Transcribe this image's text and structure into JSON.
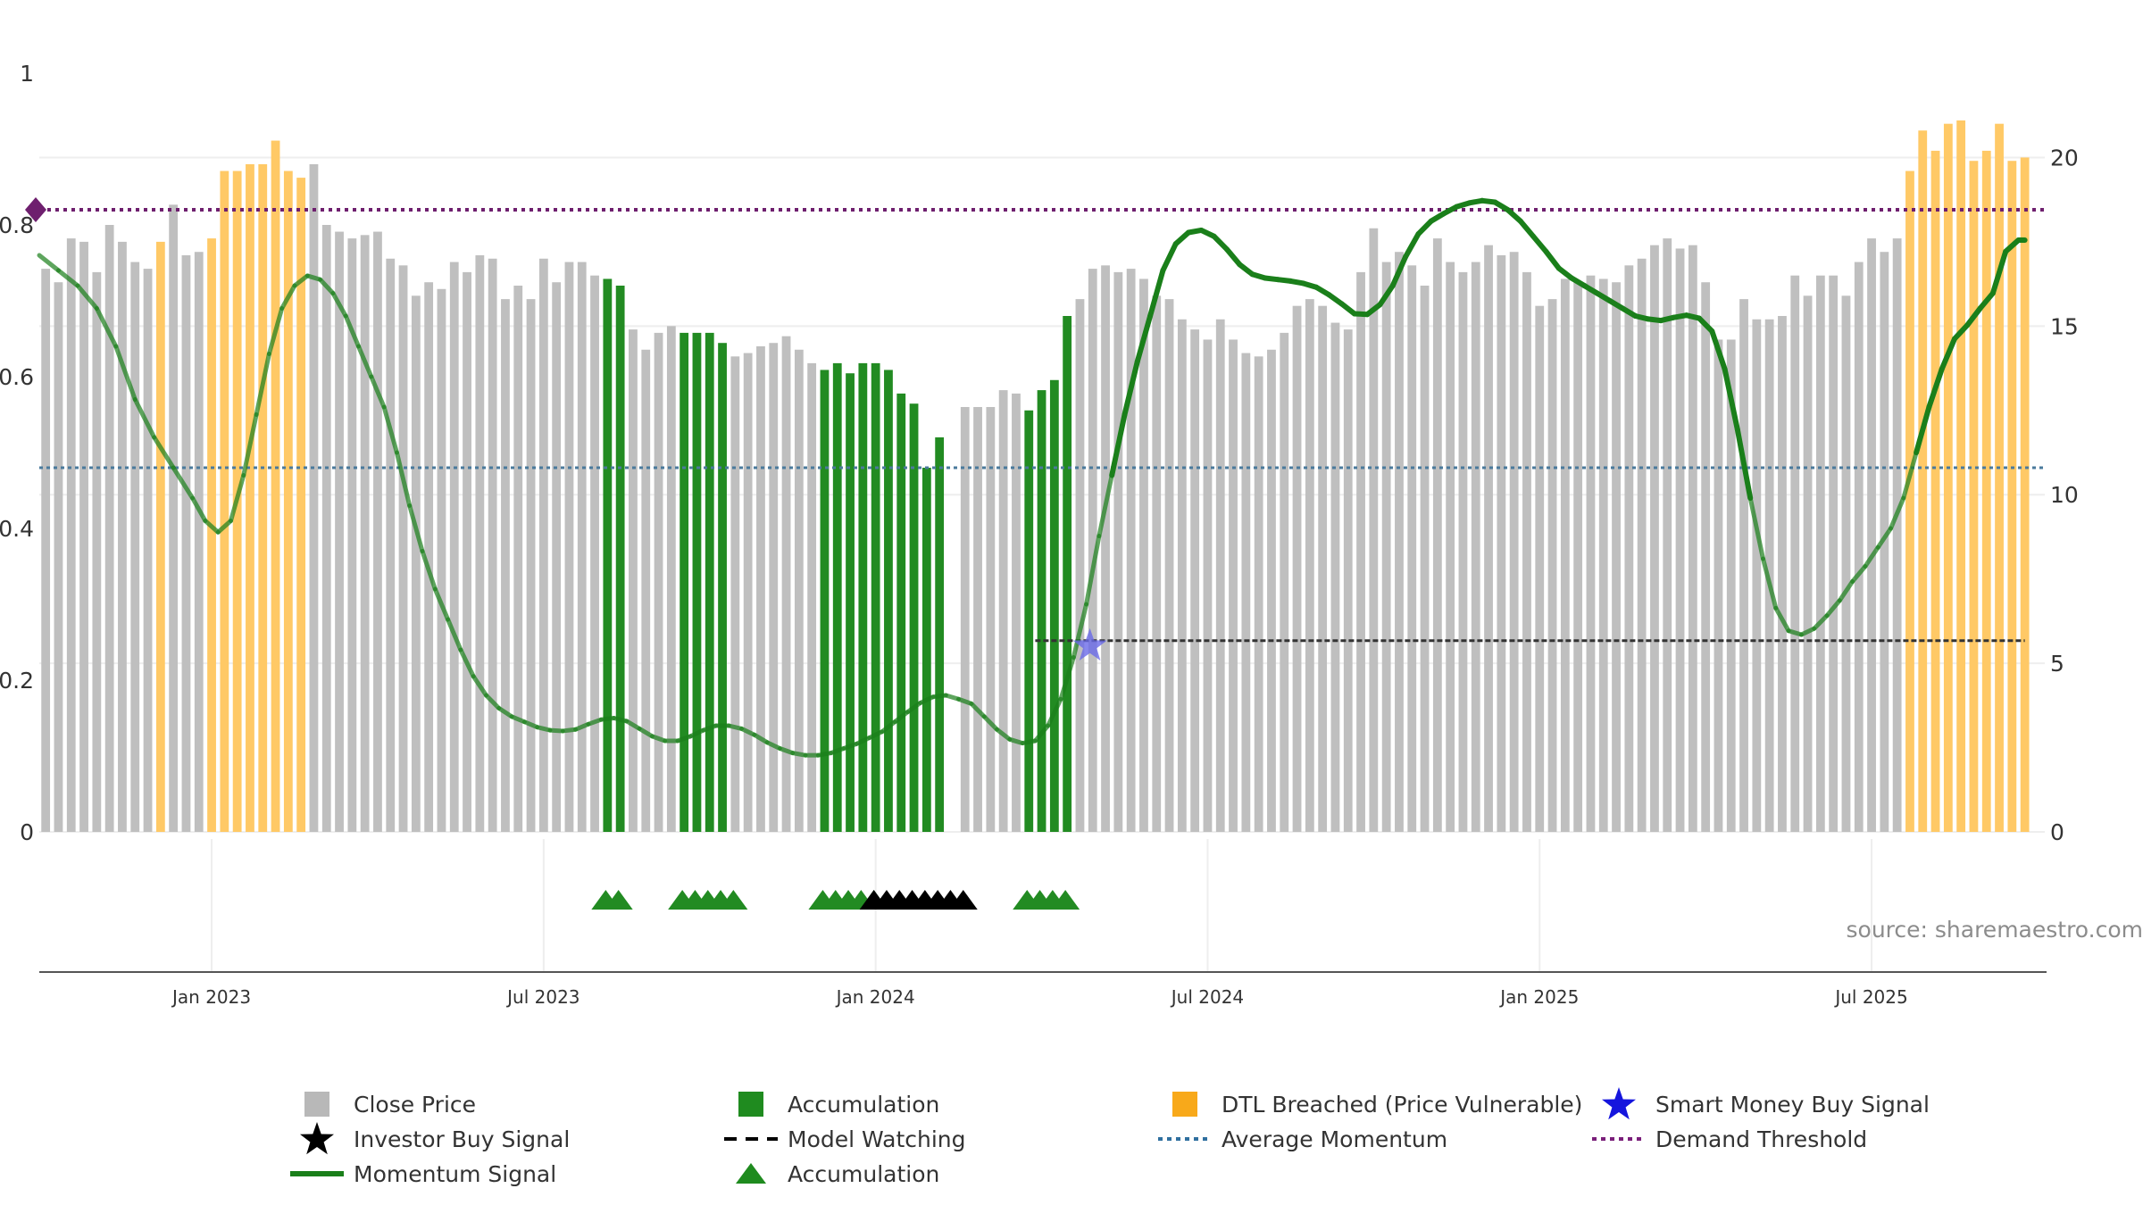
{
  "chart_data": {
    "type": "bar",
    "source": "source: sharemaestro.com",
    "left_axis": {
      "ticks": [
        "0",
        "0.2",
        "0.4",
        "0.6",
        "0.8",
        "1"
      ],
      "ylim": [
        0,
        1
      ]
    },
    "right_axis": {
      "ticks": [
        "0",
        "5",
        "10",
        "15",
        "20"
      ],
      "ylim": [
        0,
        22.5
      ]
    },
    "x_ticks": [
      "Jan 2023",
      "Jul 2023",
      "Jan 2024",
      "Jul 2024",
      "Jan 2025",
      "Jul 2025"
    ],
    "x_tick_weeks": [
      14,
      40,
      66,
      92,
      118,
      144
    ],
    "weeks": 156,
    "close_price": [
      16.7,
      16.3,
      17.6,
      17.5,
      16.6,
      18.0,
      17.5,
      16.9,
      16.7,
      17.5,
      18.6,
      17.1,
      17.2,
      17.6,
      19.6,
      19.6,
      19.8,
      19.8,
      20.5,
      19.6,
      19.4,
      19.8,
      18.0,
      17.8,
      17.6,
      17.7,
      17.8,
      17.0,
      16.8,
      15.9,
      16.3,
      16.1,
      16.9,
      16.6,
      17.1,
      17.0,
      15.8,
      16.2,
      15.8,
      17.0,
      16.3,
      16.9,
      16.9,
      16.5,
      16.4,
      16.2,
      14.9,
      14.3,
      14.8,
      15.0,
      14.8,
      14.8,
      14.8,
      14.5,
      14.1,
      14.2,
      14.4,
      14.5,
      14.7,
      14.3,
      13.9,
      13.7,
      13.9,
      13.6,
      13.9,
      13.9,
      13.7,
      13.0,
      12.7,
      10.8,
      11.7,
      0.0,
      12.6,
      12.6,
      12.6,
      13.1,
      13.0,
      12.5,
      13.1,
      13.4,
      15.3,
      15.8,
      16.7,
      16.8,
      16.6,
      16.7,
      16.4,
      15.9,
      15.8,
      15.2,
      14.9,
      14.6,
      15.2,
      14.6,
      14.2,
      14.1,
      14.3,
      14.8,
      15.6,
      15.8,
      15.6,
      15.1,
      14.9,
      16.6,
      17.9,
      16.9,
      17.2,
      16.8,
      16.2,
      17.6,
      16.9,
      16.6,
      16.9,
      17.4,
      17.1,
      17.2,
      16.6,
      15.6,
      15.8,
      16.4,
      16.3,
      16.5,
      16.4,
      16.3,
      16.8,
      17.0,
      17.4,
      17.6,
      17.3,
      17.4,
      16.3,
      14.6,
      14.6,
      15.8,
      15.2,
      15.2,
      15.3,
      16.5,
      15.9,
      16.5,
      16.5,
      15.9,
      16.9,
      17.6,
      17.2,
      17.6,
      19.6,
      20.8,
      20.2,
      21.0,
      21.1,
      19.9,
      20.2,
      21.0,
      19.9,
      20.0
    ],
    "accumulation_weeks": [
      45,
      46,
      51,
      52,
      53,
      54,
      62,
      63,
      64,
      65,
      66,
      67,
      68,
      69,
      70,
      71,
      72,
      78,
      79,
      80,
      81
    ],
    "dtl_breached_weeks": [
      10,
      14,
      15,
      16,
      17,
      18,
      19,
      20,
      21,
      147,
      148,
      149,
      150,
      151,
      152,
      153,
      154,
      155,
      156
    ],
    "momentum_signal": [
      [
        0.5,
        0.76
      ],
      [
        2.0,
        0.74
      ],
      [
        3.5,
        0.72
      ],
      [
        5.0,
        0.69
      ],
      [
        6.5,
        0.64
      ],
      [
        8.0,
        0.57
      ],
      [
        9.5,
        0.52
      ],
      [
        11.0,
        0.48
      ],
      [
        12.5,
        0.44
      ],
      [
        13.5,
        0.41
      ],
      [
        14.5,
        0.395
      ],
      [
        15.5,
        0.41
      ],
      [
        16.5,
        0.47
      ],
      [
        17.5,
        0.55
      ],
      [
        18.5,
        0.63
      ],
      [
        19.5,
        0.69
      ],
      [
        20.5,
        0.72
      ],
      [
        21.5,
        0.733
      ],
      [
        22.5,
        0.728
      ],
      [
        23.5,
        0.71
      ],
      [
        24.5,
        0.68
      ],
      [
        25.5,
        0.64
      ],
      [
        26.5,
        0.6
      ],
      [
        27.5,
        0.56
      ],
      [
        28.5,
        0.5
      ],
      [
        29.5,
        0.43
      ],
      [
        30.5,
        0.37
      ],
      [
        31.5,
        0.32
      ],
      [
        32.5,
        0.28
      ],
      [
        33.5,
        0.24
      ],
      [
        34.5,
        0.205
      ],
      [
        35.5,
        0.18
      ],
      [
        36.5,
        0.163
      ],
      [
        37.5,
        0.152
      ],
      [
        38.5,
        0.145
      ],
      [
        39.5,
        0.138
      ],
      [
        40.5,
        0.134
      ],
      [
        41.5,
        0.133
      ],
      [
        42.5,
        0.135
      ],
      [
        43.5,
        0.142
      ],
      [
        44.5,
        0.148
      ],
      [
        45.5,
        0.15
      ],
      [
        46.5,
        0.146
      ],
      [
        47.5,
        0.136
      ],
      [
        48.5,
        0.126
      ],
      [
        49.5,
        0.12
      ],
      [
        50.5,
        0.12
      ],
      [
        51.5,
        0.126
      ],
      [
        52.5,
        0.134
      ],
      [
        53.5,
        0.14
      ],
      [
        54.5,
        0.14
      ],
      [
        55.5,
        0.136
      ],
      [
        56.5,
        0.128
      ],
      [
        57.5,
        0.118
      ],
      [
        58.5,
        0.11
      ],
      [
        59.5,
        0.104
      ],
      [
        60.5,
        0.101
      ],
      [
        61.5,
        0.101
      ],
      [
        62.5,
        0.104
      ],
      [
        63.5,
        0.11
      ],
      [
        64.5,
        0.116
      ],
      [
        65.5,
        0.124
      ],
      [
        66.5,
        0.132
      ],
      [
        67.5,
        0.145
      ],
      [
        68.5,
        0.158
      ],
      [
        69.5,
        0.17
      ],
      [
        70.5,
        0.178
      ],
      [
        71.5,
        0.18
      ],
      [
        72.5,
        0.175
      ],
      [
        73.5,
        0.169
      ],
      [
        74.5,
        0.152
      ],
      [
        75.5,
        0.135
      ],
      [
        76.5,
        0.122
      ],
      [
        77.5,
        0.117
      ],
      [
        78.5,
        0.12
      ],
      [
        79.5,
        0.14
      ],
      [
        80.5,
        0.175
      ],
      [
        81.5,
        0.23
      ],
      [
        82.5,
        0.3
      ],
      [
        83.5,
        0.39
      ],
      [
        84.5,
        0.47
      ],
      [
        85.5,
        0.55
      ],
      [
        86.5,
        0.62
      ],
      [
        87.5,
        0.68
      ],
      [
        88.5,
        0.74
      ],
      [
        89.5,
        0.775
      ],
      [
        90.5,
        0.79
      ],
      [
        91.5,
        0.793
      ],
      [
        92.5,
        0.785
      ],
      [
        93.5,
        0.768
      ],
      [
        94.5,
        0.748
      ],
      [
        95.5,
        0.735
      ],
      [
        96.5,
        0.73
      ],
      [
        97.5,
        0.728
      ],
      [
        98.5,
        0.726
      ],
      [
        99.5,
        0.723
      ],
      [
        100.5,
        0.718
      ],
      [
        101.5,
        0.708
      ],
      [
        102.5,
        0.696
      ],
      [
        103.5,
        0.683
      ],
      [
        104.5,
        0.682
      ],
      [
        105.5,
        0.695
      ],
      [
        106.5,
        0.72
      ],
      [
        107.5,
        0.758
      ],
      [
        108.5,
        0.788
      ],
      [
        109.5,
        0.805
      ],
      [
        110.5,
        0.815
      ],
      [
        111.5,
        0.824
      ],
      [
        112.5,
        0.829
      ],
      [
        113.5,
        0.832
      ],
      [
        114.5,
        0.83
      ],
      [
        115.5,
        0.82
      ],
      [
        116.5,
        0.805
      ],
      [
        117.5,
        0.785
      ],
      [
        118.5,
        0.765
      ],
      [
        119.5,
        0.743
      ],
      [
        120.5,
        0.73
      ],
      [
        121.5,
        0.72
      ],
      [
        122.5,
        0.71
      ],
      [
        123.5,
        0.7
      ],
      [
        124.5,
        0.69
      ],
      [
        125.5,
        0.68
      ],
      [
        126.5,
        0.676
      ],
      [
        127.5,
        0.674
      ],
      [
        128.5,
        0.678
      ],
      [
        129.5,
        0.681
      ],
      [
        130.5,
        0.677
      ],
      [
        131.5,
        0.66
      ],
      [
        132.5,
        0.61
      ],
      [
        133.5,
        0.53
      ],
      [
        134.5,
        0.44
      ],
      [
        135.5,
        0.36
      ],
      [
        136.5,
        0.295
      ],
      [
        137.5,
        0.265
      ],
      [
        138.5,
        0.26
      ],
      [
        139.5,
        0.268
      ],
      [
        140.5,
        0.285
      ],
      [
        141.5,
        0.305
      ],
      [
        142.5,
        0.33
      ],
      [
        143.5,
        0.35
      ],
      [
        144.5,
        0.375
      ],
      [
        145.5,
        0.4
      ],
      [
        146.5,
        0.44
      ],
      [
        147.5,
        0.5
      ],
      [
        148.5,
        0.56
      ],
      [
        149.5,
        0.61
      ],
      [
        150.5,
        0.65
      ],
      [
        151.5,
        0.668
      ],
      [
        152.5,
        0.69
      ],
      [
        153.5,
        0.71
      ],
      [
        154.5,
        0.765
      ],
      [
        155.5,
        0.78
      ],
      [
        156.0,
        0.78
      ]
    ],
    "average_momentum": 0.48,
    "demand_threshold": 0.82,
    "model_watching": {
      "value": 0.252,
      "start_week": 78.5,
      "end_week": 156
    },
    "smart_money_buy_signal": [
      {
        "week": 82.5,
        "value": 0.252
      }
    ],
    "accumulation_markers": [
      45,
      46,
      51,
      52,
      53,
      54,
      55,
      62,
      63,
      64,
      65,
      66,
      78,
      79,
      80,
      81
    ],
    "investor_buy_signal_markers": [
      66,
      67,
      68,
      69,
      70,
      71,
      72,
      73
    ],
    "demand_marker": {
      "week": 0.5,
      "value": 0.82
    },
    "colors": {
      "close_price": "#bfbfbf",
      "accumulation": "#228b22",
      "dtl_breached": "#ffc966",
      "momentum": "#1a7f1a",
      "average_momentum": "#4a7a9c",
      "demand_threshold": "#6e1f6e",
      "smart_money": "#2222dd",
      "investor": "#000000",
      "grid": "#eeeeee"
    },
    "legend": [
      {
        "label": "Close Price",
        "symbol": "square",
        "color": "#b8b8b8"
      },
      {
        "label": "Accumulation",
        "symbol": "square",
        "color": "#1f8b1f"
      },
      {
        "label": "DTL Breached (Price Vulnerable)",
        "symbol": "square",
        "color": "#f8a91a"
      },
      {
        "label": "Smart Money Buy Signal",
        "symbol": "star",
        "color": "#1515dd"
      },
      {
        "label": "Investor Buy Signal",
        "symbol": "star",
        "color": "#000000"
      },
      {
        "label": "Model Watching",
        "symbol": "dash",
        "color": "#000000"
      },
      {
        "label": "Average Momentum",
        "symbol": "dot",
        "color": "#2f6f9f"
      },
      {
        "label": "Demand Threshold",
        "symbol": "dot",
        "color": "#7a1f7a"
      },
      {
        "label": "Momentum Signal",
        "symbol": "line",
        "color": "#1a7f1a"
      },
      {
        "label": "Accumulation",
        "symbol": "triangle",
        "color": "#1f8b1f"
      }
    ]
  }
}
